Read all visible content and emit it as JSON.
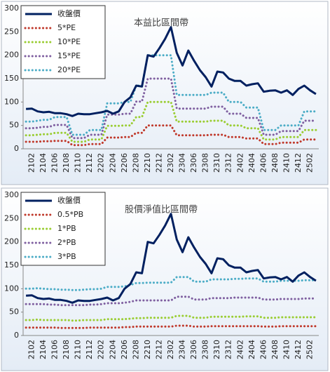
{
  "chart_data": [
    {
      "type": "line",
      "title": "本益比區間帶",
      "categories": [
        null,
        "2102",
        null,
        "2104",
        null,
        "2106",
        null,
        "2108",
        null,
        "2110",
        null,
        "2112",
        null,
        "2202",
        null,
        "2204",
        null,
        "2206",
        null,
        "2208",
        null,
        "2210",
        null,
        "2212",
        null,
        "2302",
        null,
        "2304",
        null,
        "2306",
        null,
        "2308",
        null,
        "2310",
        null,
        "2312",
        null,
        "2402",
        null,
        "2404",
        null,
        "2406",
        null,
        "2408",
        null,
        "2410",
        null,
        "2412",
        null,
        "2502",
        null
      ],
      "ylim": [
        0,
        300
      ],
      "yticks": [
        0,
        50,
        100,
        150,
        200,
        250,
        300
      ],
      "grid": false,
      "legend": "upper left",
      "series": [
        {
          "name": "收盤價",
          "color": "#002060",
          "style": "solid",
          "values": [
            85,
            86,
            80,
            78,
            79,
            76,
            76,
            74,
            70,
            75,
            74,
            74,
            76,
            78,
            81,
            75,
            80,
            100,
            110,
            135,
            133,
            200,
            197,
            215,
            235,
            260,
            205,
            178,
            210,
            188,
            168,
            153,
            133,
            165,
            163,
            150,
            145,
            145,
            135,
            138,
            140,
            122,
            124,
            125,
            120,
            125,
            115,
            128,
            135,
            125,
            117
          ]
        },
        {
          "name": "5*PE",
          "color": "#c0392b",
          "style": "dotted",
          "values": [
            15,
            15,
            15,
            16,
            16,
            17,
            17,
            17,
            8,
            8,
            8,
            10,
            10,
            10,
            24,
            24,
            24,
            25,
            25,
            34,
            34,
            50,
            50,
            50,
            50,
            50,
            29,
            29,
            29,
            29,
            29,
            29,
            30,
            30,
            30,
            25,
            25,
            25,
            22,
            22,
            22,
            10,
            10,
            10,
            13,
            13,
            13,
            13,
            20,
            20,
            20
          ]
        },
        {
          "name": "10*PE",
          "color": "#9acd32",
          "style": "dotted",
          "values": [
            29,
            29,
            30,
            31,
            31,
            34,
            34,
            34,
            15,
            15,
            15,
            20,
            20,
            20,
            49,
            49,
            49,
            50,
            50,
            68,
            68,
            100,
            100,
            100,
            100,
            100,
            58,
            58,
            58,
            58,
            58,
            58,
            60,
            60,
            60,
            50,
            50,
            50,
            44,
            44,
            44,
            20,
            20,
            20,
            25,
            25,
            25,
            25,
            40,
            40,
            40
          ]
        },
        {
          "name": "15*PE",
          "color": "#7f5fa0",
          "style": "dotted",
          "values": [
            44,
            44,
            45,
            47,
            47,
            51,
            51,
            51,
            23,
            23,
            23,
            30,
            30,
            30,
            73,
            73,
            73,
            75,
            75,
            101,
            101,
            150,
            150,
            150,
            150,
            150,
            86,
            86,
            86,
            86,
            86,
            86,
            90,
            90,
            90,
            75,
            75,
            75,
            66,
            66,
            66,
            30,
            30,
            30,
            38,
            38,
            38,
            38,
            60,
            60,
            60
          ]
        },
        {
          "name": "20*PE",
          "color": "#4bacc6",
          "style": "dotted",
          "values": [
            58,
            58,
            60,
            62,
            62,
            68,
            68,
            68,
            30,
            30,
            30,
            40,
            40,
            40,
            97,
            97,
            97,
            100,
            100,
            135,
            135,
            200,
            200,
            200,
            200,
            200,
            115,
            115,
            115,
            115,
            115,
            115,
            120,
            120,
            120,
            100,
            100,
            100,
            88,
            88,
            88,
            40,
            40,
            40,
            50,
            50,
            50,
            50,
            80,
            80,
            80
          ]
        }
      ]
    },
    {
      "type": "line",
      "title": "股價淨值比區間帶",
      "categories": [
        null,
        "2102",
        null,
        "2104",
        null,
        "2106",
        null,
        "2108",
        null,
        "2110",
        null,
        "2112",
        null,
        "2202",
        null,
        "2204",
        null,
        "2206",
        null,
        "2208",
        null,
        "2210",
        null,
        "2212",
        null,
        "2302",
        null,
        "2304",
        null,
        "2306",
        null,
        "2308",
        null,
        "2310",
        null,
        "2312",
        null,
        "2402",
        null,
        "2404",
        null,
        "2406",
        null,
        "2408",
        null,
        "2410",
        null,
        "2412",
        null,
        "2502",
        null
      ],
      "ylim": [
        0,
        300
      ],
      "yticks": [
        0,
        50,
        100,
        150,
        200,
        250,
        300
      ],
      "grid": false,
      "legend": "upper left",
      "series": [
        {
          "name": "收盤價",
          "color": "#002060",
          "style": "solid",
          "values": [
            85,
            86,
            80,
            78,
            79,
            76,
            76,
            74,
            70,
            75,
            74,
            74,
            76,
            78,
            81,
            75,
            80,
            100,
            110,
            135,
            133,
            200,
            197,
            215,
            235,
            260,
            205,
            178,
            210,
            188,
            168,
            153,
            133,
            165,
            163,
            150,
            145,
            145,
            135,
            138,
            140,
            122,
            124,
            125,
            120,
            125,
            115,
            128,
            135,
            125,
            117
          ]
        },
        {
          "name": "0.5*PB",
          "color": "#c0392b",
          "style": "dotted",
          "values": [
            17,
            17,
            17,
            17,
            17,
            17,
            16,
            16,
            16,
            16,
            16,
            17,
            17,
            17,
            17,
            17,
            17,
            18,
            18,
            19,
            19,
            19,
            19,
            19,
            19,
            19,
            21,
            21,
            21,
            19,
            19,
            19,
            20,
            20,
            20,
            20,
            20,
            20,
            20,
            20,
            20,
            19,
            19,
            19,
            20,
            20,
            20,
            20,
            20,
            20,
            20
          ]
        },
        {
          "name": "1*PB",
          "color": "#9acd32",
          "style": "dotted",
          "values": [
            33,
            33,
            34,
            33,
            33,
            33,
            33,
            33,
            32,
            32,
            33,
            33,
            33,
            33,
            35,
            35,
            35,
            35,
            36,
            37,
            37,
            38,
            38,
            38,
            38,
            38,
            42,
            42,
            42,
            38,
            38,
            38,
            40,
            40,
            40,
            40,
            40,
            40,
            41,
            41,
            41,
            38,
            38,
            38,
            39,
            39,
            39,
            39,
            39,
            39,
            39
          ]
        },
        {
          "name": "2*PB",
          "color": "#7f5fa0",
          "style": "dotted",
          "values": [
            67,
            67,
            67,
            67,
            66,
            66,
            65,
            65,
            65,
            65,
            65,
            66,
            66,
            67,
            69,
            69,
            69,
            70,
            72,
            75,
            75,
            75,
            75,
            75,
            75,
            75,
            83,
            83,
            83,
            77,
            77,
            77,
            80,
            80,
            80,
            80,
            81,
            81,
            81,
            81,
            81,
            77,
            77,
            77,
            78,
            78,
            78,
            78,
            79,
            79,
            79
          ]
        },
        {
          "name": "3*PB",
          "color": "#4bacc6",
          "style": "dotted",
          "values": [
            100,
            100,
            101,
            100,
            99,
            99,
            98,
            98,
            97,
            97,
            98,
            99,
            99,
            100,
            104,
            104,
            104,
            105,
            108,
            112,
            112,
            113,
            113,
            113,
            113,
            113,
            125,
            125,
            125,
            115,
            115,
            115,
            120,
            120,
            120,
            120,
            121,
            121,
            122,
            122,
            122,
            115,
            115,
            115,
            117,
            117,
            117,
            117,
            118,
            118,
            118
          ]
        }
      ]
    }
  ]
}
